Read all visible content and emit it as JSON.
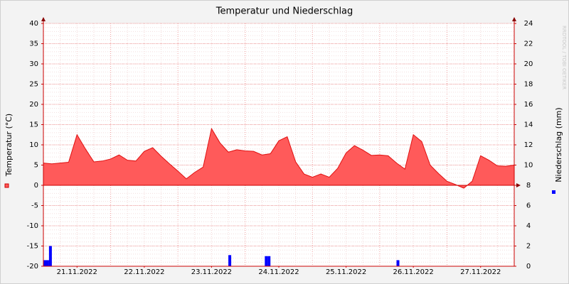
{
  "chart_data": {
    "type": "area",
    "title": "Temperatur und Niederschlag",
    "ylabel": "Temperatur (°C)",
    "y2label": "Niederschlag (mm)",
    "watermark": "RRDTOOL / TOBI OETIKER",
    "xlim": [
      0,
      168
    ],
    "xticks": [
      {
        "value": 12,
        "label": "21.11.2022"
      },
      {
        "value": 36,
        "label": "22.11.2022"
      },
      {
        "value": 60,
        "label": "23.11.2022"
      },
      {
        "value": 84,
        "label": "24.11.2022"
      },
      {
        "value": 108,
        "label": "25.11.2022"
      },
      {
        "value": 132,
        "label": "26.11.2022"
      },
      {
        "value": 156,
        "label": "27.11.2022"
      }
    ],
    "ylim": [
      -20,
      40
    ],
    "yticks": [
      -20,
      -15,
      -10,
      -5,
      0,
      5,
      10,
      15,
      20,
      25,
      30,
      35,
      40
    ],
    "y2lim": [
      0,
      24
    ],
    "y2ticks": [
      0,
      2,
      4,
      6,
      8,
      10,
      12,
      14,
      16,
      18,
      20,
      22,
      24
    ],
    "grid": true,
    "series": [
      {
        "name": "Temperatur",
        "type": "area",
        "color": "#ff5a5a",
        "x": [
          0,
          3,
          6,
          9,
          12,
          15,
          18,
          21,
          24,
          27,
          30,
          33,
          36,
          39,
          42,
          45,
          48,
          51,
          54,
          57,
          60,
          63,
          66,
          69,
          72,
          75,
          78,
          81,
          84,
          87,
          90,
          93,
          96,
          99,
          102,
          105,
          108,
          111,
          114,
          117,
          120,
          123,
          126,
          129,
          132,
          135,
          138,
          141,
          144,
          147,
          150,
          153,
          156,
          159,
          162,
          165,
          168
        ],
        "values": [
          5.5,
          5.3,
          5.5,
          5.7,
          12.5,
          9,
          5.8,
          6,
          6.5,
          7.5,
          6.2,
          6,
          8.4,
          9.3,
          7.2,
          5.3,
          3.5,
          1.6,
          3.2,
          4.5,
          14,
          10.5,
          8.2,
          8.8,
          8.5,
          8.4,
          7.5,
          7.8,
          11,
          12,
          5.8,
          2.8,
          2,
          2.8,
          2,
          4.2,
          8,
          9.8,
          8.7,
          7.4,
          7.5,
          7.3,
          5.5,
          4,
          12.5,
          10.8,
          5,
          2.9,
          1,
          0.2,
          -0.7,
          1,
          7.3,
          6.2,
          4.8,
          4.7,
          5
        ]
      },
      {
        "name": "Niederschlag",
        "type": "bar",
        "axis": "y2",
        "color": "#0000ff",
        "x": [
          0,
          1,
          2,
          66,
          79,
          80,
          126
        ],
        "values": [
          0.6,
          0.6,
          2.0,
          1.1,
          1.0,
          1.0,
          0.6
        ]
      }
    ]
  }
}
